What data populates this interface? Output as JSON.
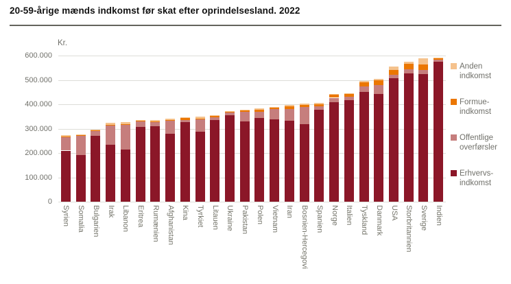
{
  "title": "20-59-årige mænds indkomst før skat efter oprindelsesland. 2022",
  "y_axis": {
    "unit_label": "Kr.",
    "ticks": [
      {
        "label": "600.000",
        "value": 600000
      },
      {
        "label": "500.000",
        "value": 500000
      },
      {
        "label": "400.000",
        "value": 400000
      },
      {
        "label": "300.000",
        "value": 300000
      },
      {
        "label": "200.000",
        "value": 200000
      },
      {
        "label": "100.000",
        "value": 100000
      },
      {
        "label": "0",
        "value": 0
      }
    ]
  },
  "legend": {
    "items": [
      {
        "key": "anden-indkomst",
        "line1": "Anden",
        "line2": "indkomst",
        "color": "#F5C28D"
      },
      {
        "key": "formue-indkomst",
        "line1": "Formue-",
        "line2": "indkomst",
        "color": "#EB7702"
      },
      {
        "key": "offentlige-overfoersler",
        "line1": "Offentlige",
        "line2": "overførsler",
        "color": "#C67E7D"
      },
      {
        "key": "erhvervs-indkomst",
        "line1": "Erhvervs-",
        "line2": "indkomst",
        "color": "#8B1728"
      }
    ]
  },
  "chart_data": {
    "type": "bar",
    "stacked": true,
    "title": "20-59-årige mænds indkomst før skat efter oprindelsesland. 2022",
    "ylabel": "Kr.",
    "ylim": [
      0,
      600000
    ],
    "grid": true,
    "legend_position": "right",
    "categories": [
      "Syrien",
      "Somalia",
      "Bulgarien",
      "Irak",
      "Libanon",
      "Eritrea",
      "Rumænien",
      "Afghanistan",
      "Kina",
      "Tyrkiet",
      "Litauen",
      "Ukraine",
      "Pakistan",
      "Polen",
      "Vietnam",
      "Iran",
      "Bosnien-Hercegovi",
      "Spanien",
      "Norge",
      "Italien",
      "Tyskland",
      "Danmark",
      "USA",
      "Storbritannien",
      "Sverige",
      "Indien"
    ],
    "series": [
      {
        "name": "Erhvervsindkomst",
        "color": "#8B1728",
        "values": [
          210000,
          193000,
          270000,
          233000,
          215000,
          308000,
          311000,
          278000,
          326000,
          287000,
          334000,
          356000,
          329000,
          345000,
          338000,
          332000,
          318000,
          379000,
          410000,
          418000,
          452000,
          443000,
          506000,
          527000,
          523000,
          575000
        ]
      },
      {
        "name": "Offentlige overførsler",
        "color": "#C67E7D",
        "values": [
          55000,
          78000,
          21000,
          80000,
          100000,
          23000,
          18000,
          56000,
          9000,
          50000,
          14000,
          9000,
          40000,
          24000,
          42000,
          49000,
          70000,
          14000,
          17000,
          13000,
          21000,
          37000,
          14000,
          16000,
          19000,
          8000
        ]
      },
      {
        "name": "Formueindkomst",
        "color": "#EB7702",
        "values": [
          2000,
          2000,
          2000,
          2000,
          3000,
          1000,
          2000,
          2000,
          8000,
          5000,
          3000,
          3000,
          5000,
          9000,
          5000,
          10000,
          10000,
          8000,
          12000,
          11000,
          18000,
          18000,
          22000,
          22000,
          21000,
          5000
        ]
      },
      {
        "name": "Anden indkomst",
        "color": "#F5C28D",
        "values": [
          5000,
          4000,
          4000,
          8000,
          8000,
          3000,
          4000,
          4000,
          4000,
          7000,
          4000,
          3000,
          4000,
          4000,
          4000,
          5000,
          4000,
          4000,
          4000,
          4000,
          4000,
          7000,
          12000,
          11000,
          25000,
          4000
        ]
      }
    ]
  },
  "colors": {
    "title_rule": "#64645C",
    "grid": "#DDDDD8",
    "axis_text": "#70706A",
    "background": "#FFFFFF"
  }
}
